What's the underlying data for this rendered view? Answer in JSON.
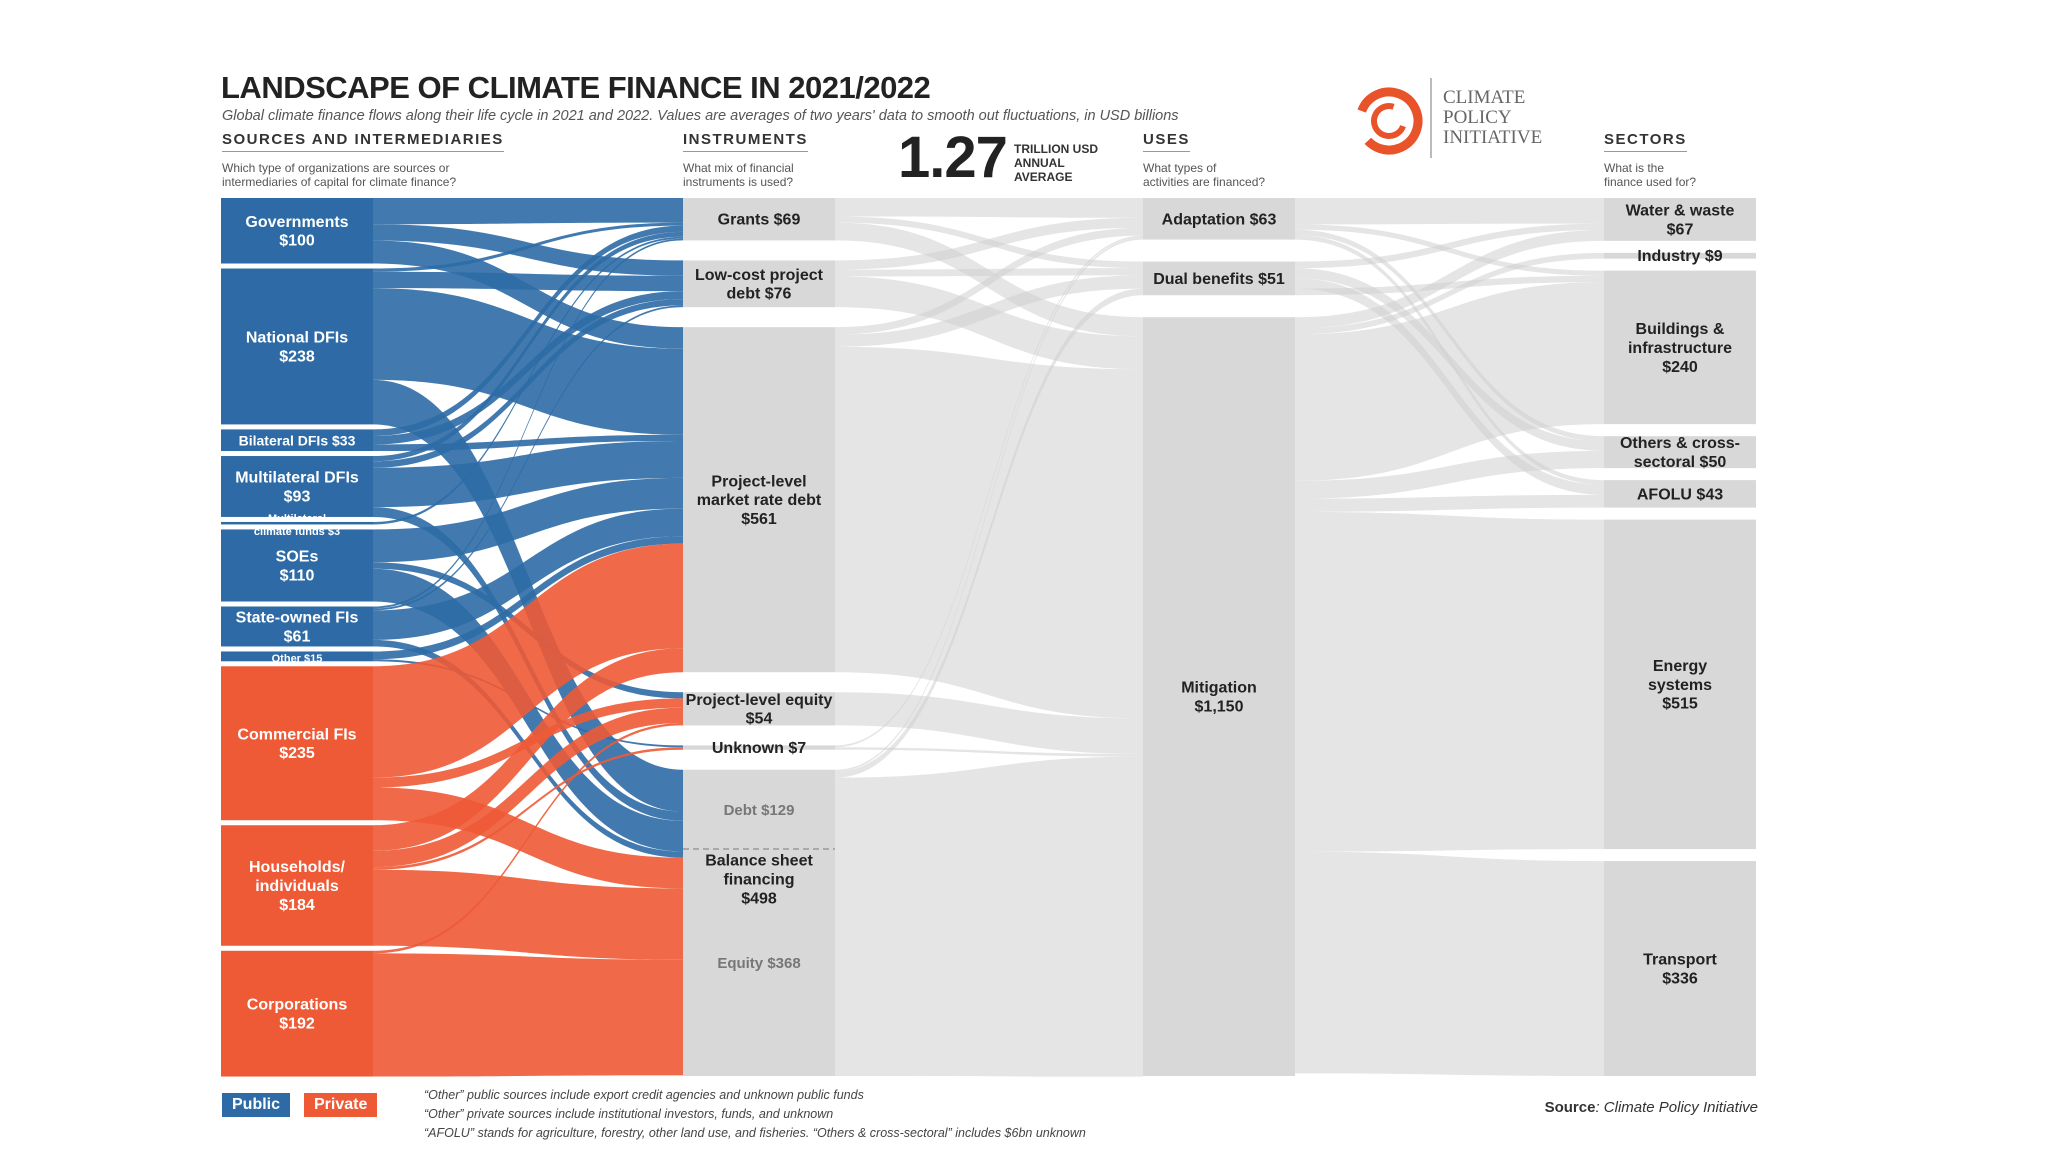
{
  "header": {
    "title": "LANDSCAPE OF CLIMATE FINANCE IN 2021/2022",
    "subtitle": "Global climate finance flows along their life cycle in 2021 and 2022. Values are averages of two years' data to smooth out fluctuations, in USD billions"
  },
  "columns": {
    "sources": {
      "heading": "SOURCES AND INTERMEDIARIES",
      "desc1": "Which type of organizations are sources or",
      "desc2": "intermediaries of capital for climate finance?"
    },
    "instruments": {
      "heading": "INSTRUMENTS",
      "desc1": "What mix of financial",
      "desc2": "instruments is used?"
    },
    "uses": {
      "heading": "USES",
      "desc1": "What types of",
      "desc2": "activities are financed?"
    },
    "sectors": {
      "heading": "SECTORS",
      "desc1": "What is the",
      "desc2": "finance used for?"
    }
  },
  "total": {
    "value": "1.27",
    "unit1": "TRILLION USD",
    "unit2": "ANNUAL",
    "unit3": "AVERAGE"
  },
  "logo": {
    "line1": "CLIMATE",
    "line2": "POLICY",
    "line3": "INITIATIVE"
  },
  "colors": {
    "public": "#2e6ba6",
    "private": "#ee5a36",
    "neutral_node": "#d8d8d8",
    "neutral_flow": "#e9e9e9"
  },
  "chart_data": {
    "type": "sankey",
    "sources": [
      {
        "l1": "Governments",
        "l2": "$100",
        "value": 100,
        "kind": "public"
      },
      {
        "l1": "National DFIs",
        "l2": "$238",
        "value": 238,
        "kind": "public"
      },
      {
        "l1": "Bilateral DFIs $33",
        "l2": "",
        "value": 33,
        "kind": "public"
      },
      {
        "l1": "Multilateral DFIs",
        "l2": "$93",
        "value": 93,
        "kind": "public"
      },
      {
        "l1": "Multilateral",
        "l2": "climate funds $3",
        "value": 3,
        "kind": "public"
      },
      {
        "l1": "SOEs",
        "l2": "$110",
        "value": 110,
        "kind": "public"
      },
      {
        "l1": "State-owned FIs",
        "l2": "$61",
        "value": 61,
        "kind": "public"
      },
      {
        "l1": "Other $15",
        "l2": "",
        "value": 15,
        "kind": "public"
      },
      {
        "l1": "Commercial FIs",
        "l2": "$235",
        "value": 235,
        "kind": "private"
      },
      {
        "l1": "Households/",
        "l2": "individuals",
        "l3": "$184",
        "value": 184,
        "kind": "private"
      },
      {
        "l1": "Corporations",
        "l2": "$192",
        "value": 192,
        "kind": "private"
      }
    ],
    "instruments": [
      {
        "l1": "Grants $69",
        "value": 69
      },
      {
        "l1": "Low-cost project",
        "l2": "debt $76",
        "value": 76
      },
      {
        "l1": "Project-level",
        "l2": "market rate debt",
        "l3": "$561",
        "value": 561
      },
      {
        "l1": "Project-level equity",
        "l2": "$54",
        "value": 54
      },
      {
        "l1": "Unknown $7",
        "value": 7
      },
      {
        "l1": "Balance sheet",
        "l2": "financing",
        "l3": "$498",
        "value": 498,
        "sub": [
          {
            "label": "Debt $129",
            "value": 129
          },
          {
            "label": "Equity $368",
            "value": 368
          }
        ]
      }
    ],
    "uses": [
      {
        "l1": "Adaptation $63",
        "value": 63
      },
      {
        "l1": "Dual benefits $51",
        "value": 51
      },
      {
        "l1": "Mitigation",
        "l2": "$1,150",
        "value": 1150
      }
    ],
    "sectors": [
      {
        "l1": "Water & waste",
        "l2": "$67",
        "value": 67
      },
      {
        "l1": "Industry $9",
        "value": 9
      },
      {
        "l1": "Buildings &",
        "l2": "infrastructure",
        "l3": "$240",
        "value": 240
      },
      {
        "l1": "Others & cross-",
        "l2": "sectoral $50",
        "value": 50
      },
      {
        "l1": "AFOLU $43",
        "value": 43
      },
      {
        "l1": "Energy",
        "l2": "systems",
        "l3": "$515",
        "value": 515
      },
      {
        "l1": "Transport",
        "l2": "$336",
        "value": 336
      }
    ]
  },
  "legend": {
    "public": "Public",
    "private": "Private"
  },
  "footnotes": {
    "line1": "“Other” public sources include export credit agencies and unknown public funds",
    "line2": "“Other” private sources include institutional investors, funds, and unknown",
    "line3": "“AFOLU” stands for agriculture, forestry, other land use, and fisheries. “Others & cross-sectoral” includes $6bn unknown"
  },
  "source": {
    "label": "Source",
    "text": ": Climate Policy Initiative"
  }
}
